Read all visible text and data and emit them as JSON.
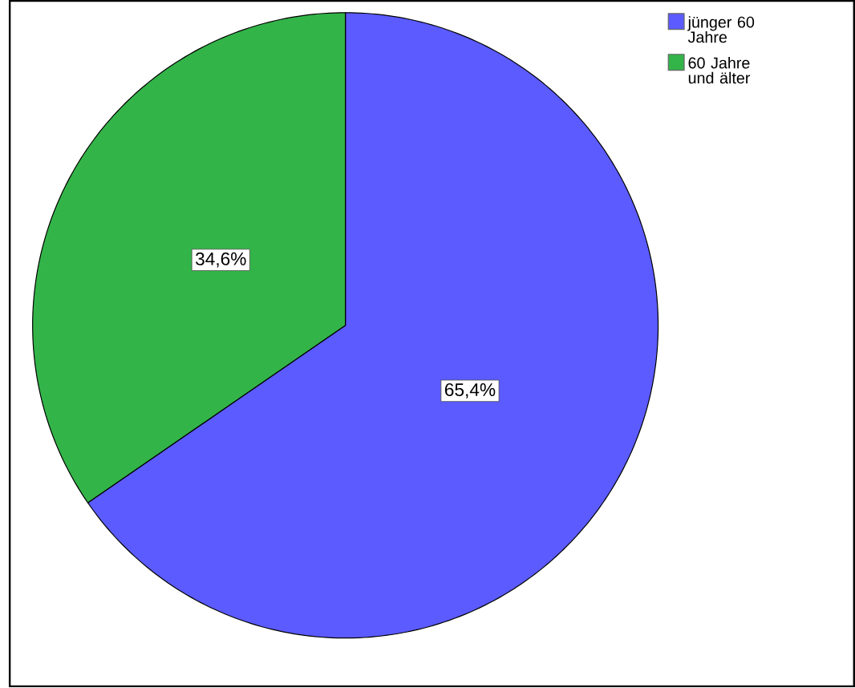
{
  "chart_data": {
    "type": "pie",
    "categories": [
      "jünger 60 Jahre",
      "60 Jahre und älter"
    ],
    "values": [
      65.4,
      34.6
    ],
    "colors": [
      "#5b5bff",
      "#33b449"
    ],
    "value_labels": [
      "65,4%",
      "34,6%"
    ],
    "legend": "top right"
  }
}
